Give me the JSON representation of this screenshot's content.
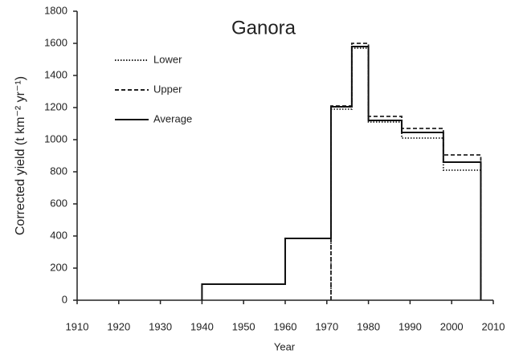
{
  "chart_data": {
    "type": "step",
    "title": "Ganora",
    "x_label": "Year",
    "y_label": "Corrected yield (t km⁻² yr⁻¹)",
    "xlim": [
      1910,
      2010
    ],
    "xticks": [
      1910,
      1920,
      1930,
      1940,
      1950,
      1960,
      1970,
      1980,
      1990,
      2000,
      2010
    ],
    "ylim": [
      0,
      1800
    ],
    "yticks": [
      0,
      200,
      400,
      600,
      800,
      1000,
      1200,
      1400,
      1600,
      1800
    ],
    "legend": "upper left",
    "series": [
      {
        "name": "Lower",
        "color": "#222222",
        "dash": "dotted",
        "x": [
          1971,
          1976,
          1980,
          1988,
          1998,
          2007
        ],
        "values": [
          1190,
          1570,
          1110,
          1010,
          810,
          0
        ]
      },
      {
        "name": "Upper",
        "color": "#222222",
        "dash": "dashed",
        "x": [
          1971,
          1976,
          1980,
          1988,
          1998,
          2007
        ],
        "values": [
          1210,
          1600,
          1145,
          1070,
          905,
          0
        ]
      },
      {
        "name": "Average",
        "color": "#111111",
        "dash": "solid",
        "x": [
          1940,
          1960,
          1971,
          1976,
          1980,
          1988,
          1998,
          2007
        ],
        "values": [
          100,
          385,
          1205,
          1580,
          1120,
          1045,
          860,
          0
        ]
      }
    ]
  }
}
